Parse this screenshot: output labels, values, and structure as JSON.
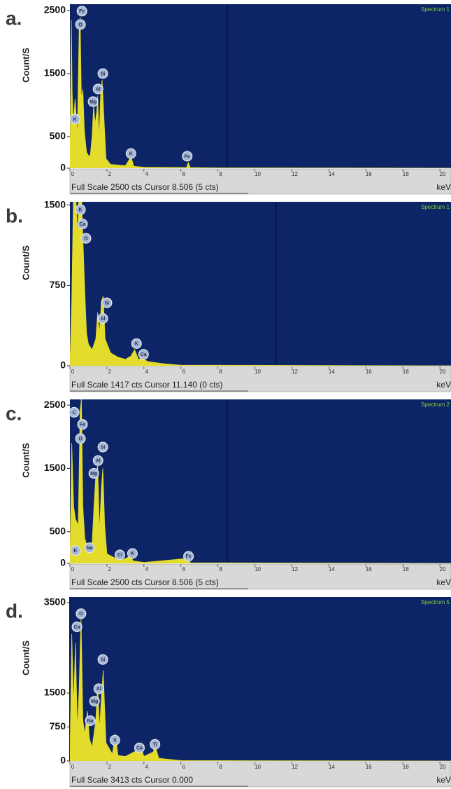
{
  "chart_data": [
    {
      "type": "area",
      "panel_label": "a.",
      "spectrum_name": "Spectrum 1",
      "footer": "Full Scale 2500 cts Cursor 8.506 (5 cts)",
      "x_unit": "keV",
      "y_label": "Count/S",
      "x": [
        0,
        0.08,
        0.12,
        0.18,
        0.28,
        0.4,
        0.5,
        0.55,
        0.62,
        0.7,
        0.78,
        0.9,
        1.0,
        1.1,
        1.2,
        1.28,
        1.36,
        1.45,
        1.5,
        1.58,
        1.66,
        1.74,
        1.82,
        1.95,
        2.2,
        3.0,
        3.3,
        3.45,
        4.0,
        6.3,
        6.4,
        6.5,
        8,
        20.6
      ],
      "series": [
        {
          "color": "#e3dc2c",
          "values": [
            0,
            2350,
            1200,
            700,
            1100,
            500,
            2200,
            2400,
            1100,
            1250,
            600,
            250,
            200,
            200,
            500,
            1000,
            700,
            900,
            1150,
            450,
            1150,
            1400,
            900,
            150,
            60,
            40,
            180,
            30,
            15,
            10,
            90,
            10,
            5,
            0
          ]
        }
      ],
      "xlim": [
        0,
        20.6
      ],
      "xticks": [
        0,
        2,
        4,
        6,
        8,
        10,
        12,
        14,
        16,
        18,
        20
      ],
      "ylim": [
        0,
        2600
      ],
      "yticks": [
        0,
        500,
        1500,
        2500
      ],
      "cursor": 8.506,
      "annotations": [
        {
          "label": "Fe",
          "x": 0.65,
          "y": 2490
        },
        {
          "label": "O",
          "x": 0.57,
          "y": 2278
        },
        {
          "label": "Si",
          "x": 1.78,
          "y": 1500
        },
        {
          "label": "Al",
          "x": 1.52,
          "y": 1256
        },
        {
          "label": "Mg",
          "x": 1.25,
          "y": 1055
        },
        {
          "label": "K",
          "x": 0.27,
          "y": 778
        },
        {
          "label": "K",
          "x": 3.3,
          "y": 233
        },
        {
          "label": "Fe",
          "x": 6.34,
          "y": 189
        }
      ]
    },
    {
      "type": "area",
      "panel_label": "b.",
      "spectrum_name": "Spectrum 1",
      "footer": "Full Scale 1417 cts Cursor 11.140 (0 cts)",
      "x_unit": "keV",
      "y_label": "Count/S",
      "x": [
        0,
        0.1,
        0.2,
        0.3,
        0.4,
        0.5,
        0.6,
        0.7,
        0.8,
        0.9,
        1.0,
        1.2,
        1.4,
        1.5,
        1.6,
        1.7,
        1.8,
        1.9,
        2.2,
        2.6,
        3.0,
        3.3,
        3.5,
        3.7,
        3.9,
        4.2,
        5,
        6,
        20.6
      ],
      "series": [
        {
          "color": "#e3dc2c",
          "values": [
            0,
            600,
            1700,
            1700,
            1200,
            1650,
            1700,
            1200,
            700,
            300,
            200,
            150,
            250,
            500,
            300,
            600,
            650,
            250,
            120,
            80,
            60,
            90,
            150,
            60,
            70,
            40,
            20,
            5,
            0
          ]
        }
      ],
      "xlim": [
        0,
        20.6
      ],
      "xticks": [
        0,
        2,
        4,
        6,
        8,
        10,
        12,
        14,
        16,
        18,
        20
      ],
      "ylim": [
        0,
        1530
      ],
      "yticks": [
        0,
        750,
        1500
      ],
      "cursor": 11.14,
      "annotations": [
        {
          "label": "K",
          "x": 0.57,
          "y": 1457
        },
        {
          "label": "Ca",
          "x": 0.68,
          "y": 1323
        },
        {
          "label": "O",
          "x": 0.87,
          "y": 1189
        },
        {
          "label": "Si",
          "x": 2.0,
          "y": 588
        },
        {
          "label": "Al",
          "x": 1.78,
          "y": 441
        },
        {
          "label": "K",
          "x": 3.6,
          "y": 207
        },
        {
          "label": "Ca",
          "x": 3.98,
          "y": 107
        }
      ]
    },
    {
      "type": "area",
      "panel_label": "c.",
      "spectrum_name": "Spectrum 2",
      "footer": "Full Scale 2500 cts Cursor 8.506 (5 cts)",
      "x_unit": "keV",
      "y_label": "Count/S",
      "x": [
        0,
        0.1,
        0.2,
        0.3,
        0.45,
        0.55,
        0.62,
        0.7,
        0.8,
        0.95,
        1.05,
        1.2,
        1.3,
        1.4,
        1.5,
        1.6,
        1.7,
        1.78,
        1.88,
        2.0,
        2.6,
        2.7,
        2.8,
        3.3,
        3.4,
        4,
        6.4,
        6.5,
        20.6
      ],
      "series": [
        {
          "color": "#e3dc2c",
          "values": [
            0,
            1900,
            900,
            700,
            600,
            2400,
            2600,
            900,
            400,
            250,
            300,
            300,
            900,
            1400,
            1550,
            500,
            1200,
            1500,
            600,
            150,
            60,
            110,
            50,
            120,
            40,
            15,
            80,
            10,
            0
          ]
        }
      ],
      "xlim": [
        0,
        20.6
      ],
      "xticks": [
        0,
        2,
        4,
        6,
        8,
        10,
        12,
        14,
        16,
        18,
        20
      ],
      "ylim": [
        0,
        2590
      ],
      "yticks": [
        0,
        500,
        1500,
        2500
      ],
      "cursor": 8.506,
      "annotations": [
        {
          "label": "C",
          "x": 0.23,
          "y": 2386
        },
        {
          "label": "Fe",
          "x": 0.68,
          "y": 2195
        },
        {
          "label": "O",
          "x": 0.57,
          "y": 1971
        },
        {
          "label": "Si",
          "x": 1.78,
          "y": 1837
        },
        {
          "label": "Al",
          "x": 1.52,
          "y": 1624
        },
        {
          "label": "Mg",
          "x": 1.29,
          "y": 1422
        },
        {
          "label": "K",
          "x": 0.3,
          "y": 202
        },
        {
          "label": "Na",
          "x": 1.06,
          "y": 246
        },
        {
          "label": "Cl",
          "x": 2.7,
          "y": 134
        },
        {
          "label": "K",
          "x": 3.38,
          "y": 157
        },
        {
          "label": "Fe",
          "x": 6.41,
          "y": 112
        }
      ]
    },
    {
      "type": "area",
      "panel_label": "d.",
      "spectrum_name": "Spectrum 5",
      "footer": "Full Scale 3413 cts Cursor 0.000",
      "x_unit": "keV",
      "y_label": "Count/S",
      "x": [
        0,
        0.1,
        0.2,
        0.3,
        0.4,
        0.5,
        0.6,
        0.7,
        0.8,
        0.95,
        1.05,
        1.2,
        1.3,
        1.4,
        1.5,
        1.6,
        1.7,
        1.8,
        1.95,
        2.3,
        2.45,
        2.6,
        3.0,
        3.7,
        3.8,
        4.0,
        4.5,
        4.6,
        4.8,
        6,
        20.6
      ],
      "series": [
        {
          "color": "#e3dc2c",
          "values": [
            0,
            2800,
            1200,
            2600,
            700,
            1600,
            3200,
            900,
            600,
            1100,
            500,
            300,
            600,
            900,
            1700,
            700,
            1400,
            2000,
            400,
            150,
            600,
            120,
            100,
            250,
            350,
            100,
            200,
            350,
            60,
            10,
            0
          ]
        }
      ],
      "xlim": [
        0,
        20.6
      ],
      "xticks": [
        0,
        2,
        4,
        6,
        8,
        10,
        12,
        14,
        16,
        18,
        20
      ],
      "ylim": [
        0,
        3620
      ],
      "yticks": [
        0,
        750,
        1500,
        3500
      ],
      "cursor": 0,
      "annotations": [
        {
          "label": "O",
          "x": 0.6,
          "y": 3252
        },
        {
          "label": "Ca",
          "x": 0.38,
          "y": 2961
        },
        {
          "label": "Si",
          "x": 1.78,
          "y": 2240
        },
        {
          "label": "Al",
          "x": 1.56,
          "y": 1595
        },
        {
          "label": "Mg",
          "x": 1.33,
          "y": 1319
        },
        {
          "label": "Na",
          "x": 1.1,
          "y": 890
        },
        {
          "label": "S",
          "x": 2.43,
          "y": 460
        },
        {
          "label": "Ca",
          "x": 3.76,
          "y": 291
        },
        {
          "label": "Ti",
          "x": 4.6,
          "y": 368
        }
      ]
    }
  ]
}
